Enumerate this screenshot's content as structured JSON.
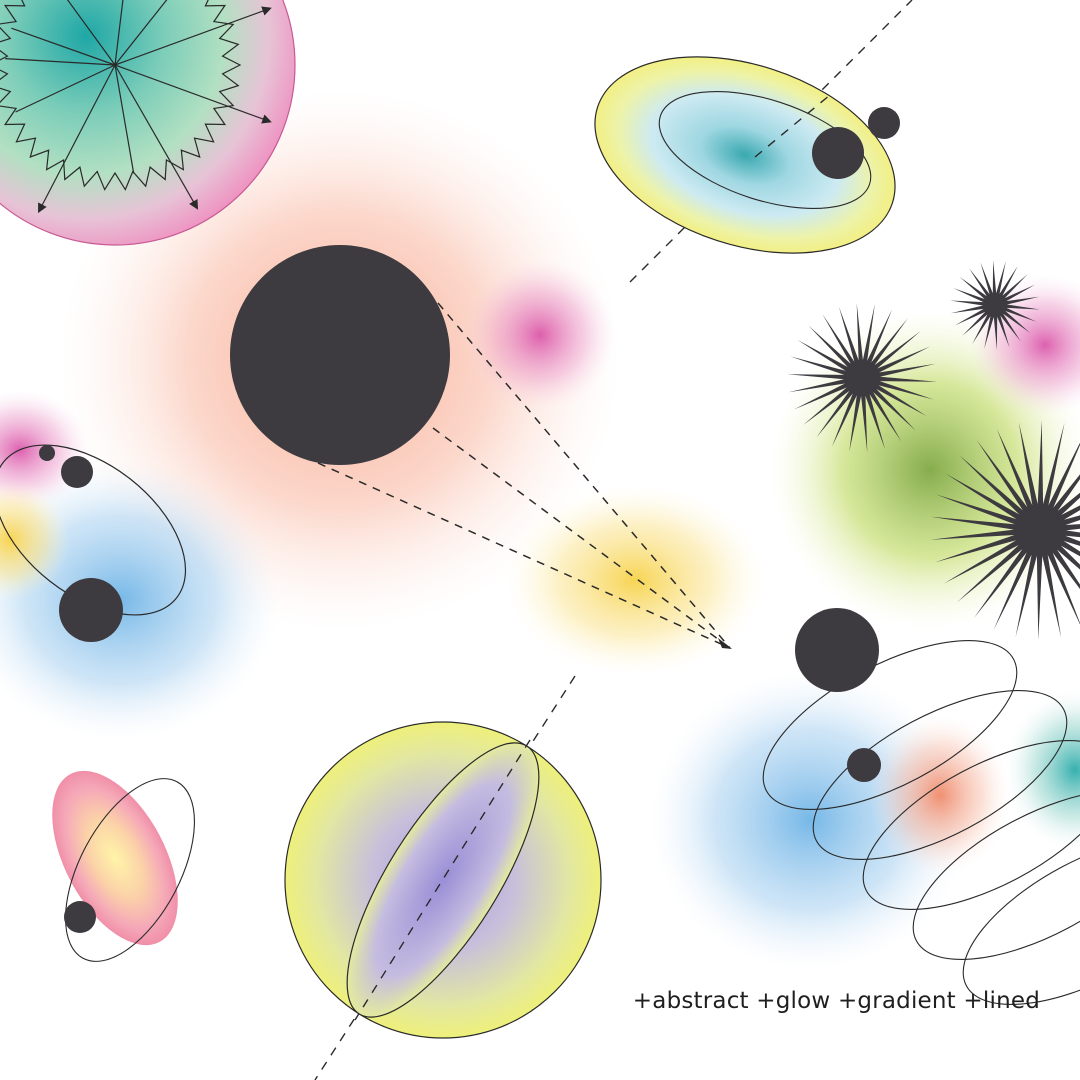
{
  "caption": "+abstract +glow +gradient +lined",
  "palette": {
    "ink": "#3d3a40",
    "line": "#2a2a2a",
    "peach": "#f7a98f",
    "pink": "#d94fa6",
    "sky": "#6fb4e6",
    "teal": "#1fa7a6",
    "mint": "#a8dcc0",
    "rose": "#ef8fc0",
    "lemon": "#eef07a",
    "olive": "#7fa843",
    "lavender": "#b0a7d8",
    "amber": "#f7d24a",
    "coral": "#f08a6a",
    "cream": "#fff4a8"
  },
  "icons": {
    "sunburst_planet": "sunburst-planet-icon",
    "saturn_disk": "galaxy-disk-icon",
    "dark_sphere": "black-hole-icon",
    "orbit": "orbit-icon",
    "starburst": "starburst-icon",
    "wire_sphere": "wireframe-sphere-icon"
  }
}
